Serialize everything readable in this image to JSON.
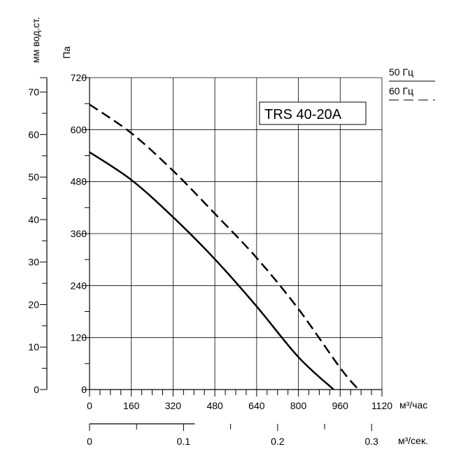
{
  "chart_data": {
    "type": "line",
    "model_label": "TRS 40-20A",
    "x": {
      "unit": "м³/час",
      "range": [
        0,
        1120
      ],
      "ticks": [
        "0",
        "160",
        "320",
        "480",
        "640",
        "800",
        "960",
        "1120"
      ]
    },
    "x2": {
      "unit": "м³/сек.",
      "range": [
        0,
        0.311
      ],
      "ticks": [
        "0",
        "0.1",
        "0.2",
        "0.3"
      ],
      "tick_values": [
        0,
        0.1,
        0.2,
        0.3
      ]
    },
    "y": {
      "unit": "Па",
      "range": [
        0,
        720
      ],
      "ticks": [
        "0",
        "120",
        "240",
        "360",
        "480",
        "600",
        "720"
      ]
    },
    "y2": {
      "unit": "мм вод.ст.",
      "range": [
        0,
        73.4
      ],
      "ticks": [
        "0",
        "10",
        "20",
        "30",
        "40",
        "50",
        "60",
        "70"
      ],
      "tick_values": [
        0,
        10,
        20,
        30,
        40,
        50,
        60,
        70
      ]
    },
    "grid": true,
    "legend": {
      "placement": "top-right"
    },
    "series": [
      {
        "name": "50 Гц",
        "style": "solid",
        "color": "#000000",
        "x": [
          0,
          160,
          320,
          480,
          640,
          800,
          935
        ],
        "y": [
          548,
          484,
          398,
          301,
          192,
          75,
          0
        ]
      },
      {
        "name": "60 Гц",
        "style": "dashed",
        "color": "#000000",
        "x": [
          0,
          160,
          320,
          480,
          640,
          800,
          960,
          1030
        ],
        "y": [
          658,
          592,
          505,
          406,
          304,
          186,
          50,
          0
        ]
      }
    ]
  }
}
